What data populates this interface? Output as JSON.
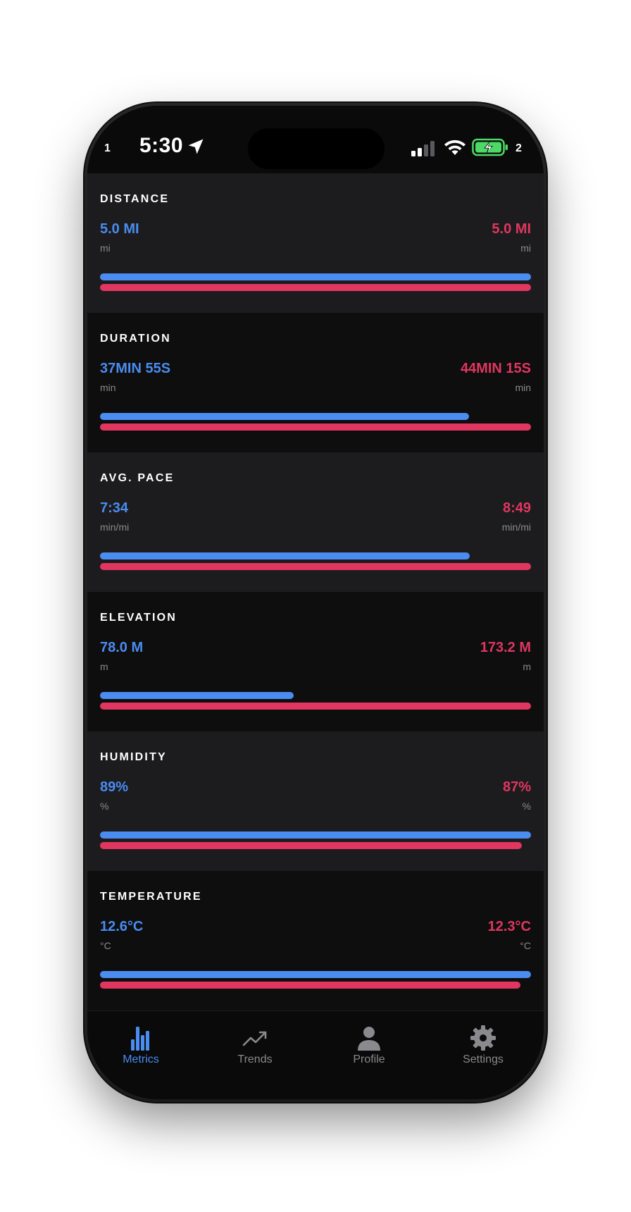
{
  "status_bar": {
    "left_number": "1",
    "time": "5:30",
    "right_number": "2",
    "icons": [
      "location-arrow-icon",
      "cellular-signal-icon",
      "wifi-icon",
      "battery-charging-icon"
    ]
  },
  "colors": {
    "background": "#0a0a0b",
    "card_alt": "#1c1c1e",
    "series_left": "#4a8cf0",
    "series_right": "#e0365f",
    "muted_text": "#8a8a8e"
  },
  "metrics": [
    {
      "title": "DISTANCE",
      "left_value": "5.0 MI",
      "left_unit": "mi",
      "right_value": "5.0 MI",
      "right_unit": "mi",
      "left_fraction": 1.0,
      "right_fraction": 1.0
    },
    {
      "title": "DURATION",
      "left_value": "37MIN 55S",
      "left_unit": "min",
      "right_value": "44MIN 15S",
      "right_unit": "min",
      "left_fraction": 0.857,
      "right_fraction": 1.0
    },
    {
      "title": "AVG. PACE",
      "left_value": "7:34",
      "left_unit": "min/mi",
      "right_value": "8:49",
      "right_unit": "min/mi",
      "left_fraction": 0.858,
      "right_fraction": 1.0
    },
    {
      "title": "ELEVATION",
      "left_value": "78.0 M",
      "left_unit": "m",
      "right_value": "173.2 M",
      "right_unit": "m",
      "left_fraction": 0.45,
      "right_fraction": 1.0
    },
    {
      "title": "HUMIDITY",
      "left_value": "89%",
      "left_unit": "%",
      "right_value": "87%",
      "right_unit": "%",
      "left_fraction": 1.0,
      "right_fraction": 0.978
    },
    {
      "title": "TEMPERATURE",
      "left_value": "12.6°C",
      "left_unit": "°C",
      "right_value": "12.3°C",
      "right_unit": "°C",
      "left_fraction": 1.0,
      "right_fraction": 0.976
    }
  ],
  "tabs": [
    {
      "label": "Metrics",
      "icon": "bar-chart-icon",
      "active": true
    },
    {
      "label": "Trends",
      "icon": "trending-up-icon",
      "active": false
    },
    {
      "label": "Profile",
      "icon": "person-icon",
      "active": false
    },
    {
      "label": "Settings",
      "icon": "gear-icon",
      "active": false
    }
  ]
}
